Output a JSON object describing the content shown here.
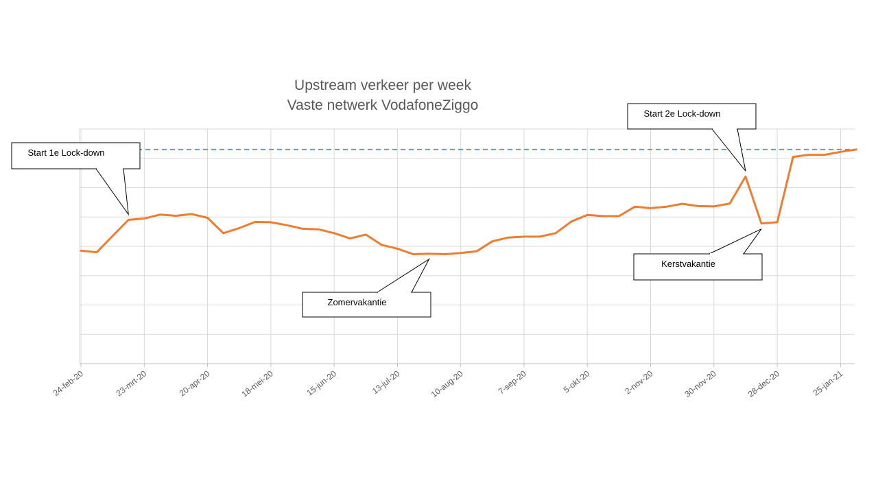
{
  "chart_data": {
    "type": "line",
    "title": "Upstream verkeer per week",
    "subtitle": "Vaste netwerk VodafoneZiggo",
    "xlabel": "",
    "ylabel": "",
    "grid": true,
    "x_tick_labels": [
      "24-feb-20",
      "23-mrt-20",
      "20-apr-20",
      "18-mei-20",
      "15-jun-20",
      "13-jul-20",
      "10-aug-20",
      "7-sep-20",
      "5-okt-20",
      "2-nov-20",
      "30-nov-20",
      "28-dec-20",
      "25-jan-21"
    ],
    "x": [
      "24-feb-20",
      "2-mrt-20",
      "9-mrt-20",
      "16-mrt-20",
      "23-mrt-20",
      "30-mrt-20",
      "6-apr-20",
      "13-apr-20",
      "20-apr-20",
      "27-apr-20",
      "4-mei-20",
      "11-mei-20",
      "18-mei-20",
      "25-mei-20",
      "1-jun-20",
      "8-jun-20",
      "15-jun-20",
      "22-jun-20",
      "29-jun-20",
      "6-jul-20",
      "13-jul-20",
      "20-jul-20",
      "27-jul-20",
      "3-aug-20",
      "10-aug-20",
      "17-aug-20",
      "24-aug-20",
      "31-aug-20",
      "7-sep-20",
      "14-sep-20",
      "21-sep-20",
      "28-sep-20",
      "5-okt-20",
      "12-okt-20",
      "19-okt-20",
      "26-okt-20",
      "2-nov-20",
      "9-nov-20",
      "16-nov-20",
      "23-nov-20",
      "30-nov-20",
      "7-dec-20",
      "14-dec-20",
      "21-dec-20",
      "28-dec-20",
      "4-jan-21",
      "11-jan-21",
      "18-jan-21",
      "25-jan-21",
      "1-feb-21"
    ],
    "ylim": [
      0,
      8
    ],
    "series": [
      {
        "color": "#ED7D31",
        "values": [
          3.85,
          3.8,
          4.35,
          4.9,
          4.95,
          5.08,
          5.04,
          5.1,
          4.97,
          4.45,
          4.62,
          4.83,
          4.82,
          4.72,
          4.6,
          4.58,
          4.45,
          4.27,
          4.4,
          4.05,
          3.92,
          3.73,
          3.75,
          3.73,
          3.77,
          3.83,
          4.17,
          4.3,
          4.33,
          4.33,
          4.45,
          4.85,
          5.07,
          5.03,
          5.03,
          5.35,
          5.3,
          5.35,
          5.45,
          5.37,
          5.36,
          5.46,
          6.38,
          4.78,
          4.82,
          7.05,
          7.12,
          7.12,
          7.22,
          7.3
        ]
      }
    ],
    "reference_line": {
      "value": 7.3,
      "color": "#5B9BD5",
      "style": "dashed"
    },
    "annotations": [
      {
        "text": "Start  1e Lock-down",
        "x": "16-mrt-20"
      },
      {
        "text": "Zomervakantie",
        "x": "27-jul-20"
      },
      {
        "text": "Start  2e Lock-down",
        "x": "14-dec-20"
      },
      {
        "text": "Kerstvakantie",
        "x": "21-dec-20"
      }
    ],
    "colors": {
      "grid": "#D9D9D9",
      "axis": "#BFBFBF",
      "text": "#595959"
    }
  }
}
